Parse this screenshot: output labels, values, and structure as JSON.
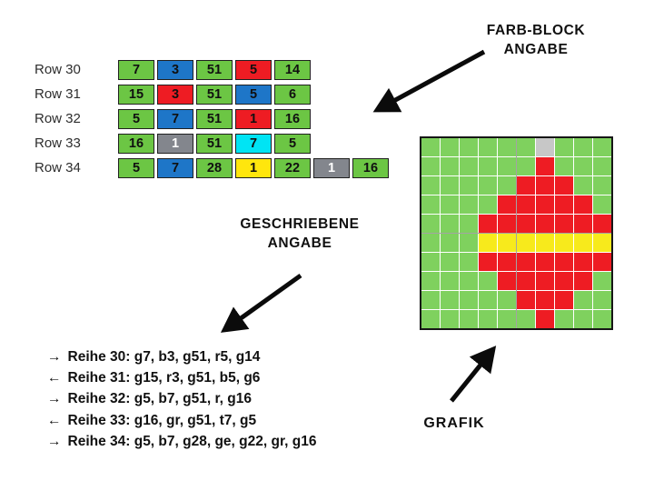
{
  "labels": {
    "farb_block": {
      "line1": "FARB-BLOCK",
      "line2": "ANGABE"
    },
    "geschriebene": {
      "line1": "GESCHRIEBENE",
      "line2": "ANGABE"
    },
    "grafik": "GRAFIK"
  },
  "color_block_rows": [
    {
      "label": "Row 30",
      "blocks": [
        {
          "color": "green",
          "value": "7"
        },
        {
          "color": "blue",
          "value": "3"
        },
        {
          "color": "green",
          "value": "51"
        },
        {
          "color": "red",
          "value": "5"
        },
        {
          "color": "green",
          "value": "14"
        }
      ]
    },
    {
      "label": "Row 31",
      "blocks": [
        {
          "color": "green",
          "value": "15"
        },
        {
          "color": "red",
          "value": "3"
        },
        {
          "color": "green",
          "value": "51"
        },
        {
          "color": "blue",
          "value": "5"
        },
        {
          "color": "green",
          "value": "6"
        }
      ]
    },
    {
      "label": "Row 32",
      "blocks": [
        {
          "color": "green",
          "value": "5"
        },
        {
          "color": "blue",
          "value": "7"
        },
        {
          "color": "green",
          "value": "51"
        },
        {
          "color": "red",
          "value": "1"
        },
        {
          "color": "green",
          "value": "16"
        }
      ]
    },
    {
      "label": "Row 33",
      "blocks": [
        {
          "color": "green",
          "value": "16"
        },
        {
          "color": "gray",
          "value": "1"
        },
        {
          "color": "green",
          "value": "51"
        },
        {
          "color": "cyan",
          "value": "7"
        },
        {
          "color": "green",
          "value": "5"
        }
      ]
    },
    {
      "label": "Row 34",
      "blocks": [
        {
          "color": "green",
          "value": "5"
        },
        {
          "color": "blue",
          "value": "7"
        },
        {
          "color": "green",
          "value": "28"
        },
        {
          "color": "yellow",
          "value": "1"
        },
        {
          "color": "green",
          "value": "22"
        },
        {
          "color": "gray",
          "value": "1"
        },
        {
          "color": "green",
          "value": "16"
        }
      ]
    }
  ],
  "written_rows": [
    {
      "direction": "→",
      "text": "Reihe 30: g7, b3, g51, r5, g14"
    },
    {
      "direction": "←",
      "text": "Reihe 31: g15, r3, g51, b5, g6"
    },
    {
      "direction": "→",
      "text": "Reihe 32: g5, b7, g51, r, g16"
    },
    {
      "direction": "←",
      "text": "Reihe 33: g16, gr, g51, t7, g5"
    },
    {
      "direction": "→",
      "text": "Reihe 34: g5, b7, g28, ge, g22, gr, g16"
    }
  ],
  "pattern_grid": {
    "columns": 10,
    "rows": [
      "GGGGGGSGGG",
      "GGGGGGRGGG",
      "GGGGGRRRGG",
      "GGGGRRRRRG",
      "GGGRRRRRRR",
      "GGGYYYYYYY",
      "GGGRRRRRRR",
      "GGGGRRRRRG",
      "GGGGGRRRGG",
      "GGGGGGRGGG"
    ],
    "legend": {
      "G": "green",
      "R": "red",
      "Y": "yellow",
      "S": "silver"
    }
  },
  "colors": {
    "block_green": "#6cc644",
    "block_blue": "#1e76c8",
    "block_red": "#ee1c23",
    "block_cyan": "#00e4f4",
    "block_yellow": "#ffe60d",
    "block_gray": "#83868d",
    "block_text_dark": "#101010",
    "block_text_light": "#ffffff",
    "grid_green": "#7fd15e",
    "grid_red": "#ee1c23",
    "grid_yellow": "#f7ea1c",
    "grid_silver": "#c7c7c7"
  }
}
